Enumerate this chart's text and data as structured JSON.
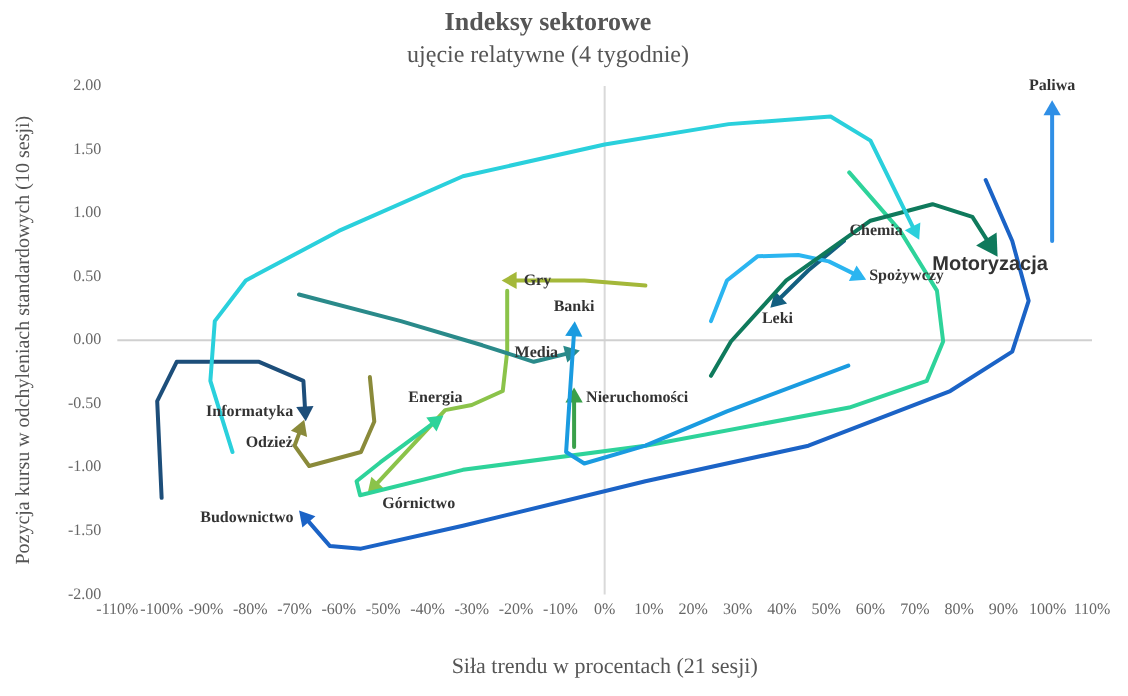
{
  "chart_data": {
    "type": "line",
    "title": "Indeksy sektorowe",
    "subtitle": "ujęcie relatywne (4 tygodnie)",
    "xlabel": "Siła trendu w procentach (21 sesji)",
    "ylabel": "Pozycja kursu w odchyleniach standardowych (10 sesji)",
    "xlim": [
      -110,
      110
    ],
    "xticks": [
      {
        "value": -110,
        "label": "-110%"
      },
      {
        "value": -100,
        "label": "-100%"
      },
      {
        "value": -90,
        "label": "-90%"
      },
      {
        "value": -80,
        "label": "-80%"
      },
      {
        "value": -70,
        "label": "-70%"
      },
      {
        "value": -60,
        "label": "-60%"
      },
      {
        "value": -50,
        "label": "-50%"
      },
      {
        "value": -40,
        "label": "-40%"
      },
      {
        "value": -30,
        "label": "-30%"
      },
      {
        "value": -20,
        "label": "-20%"
      },
      {
        "value": -10,
        "label": "-10%"
      },
      {
        "value": 0,
        "label": "0%"
      },
      {
        "value": 10,
        "label": "10%"
      },
      {
        "value": 20,
        "label": "20%"
      },
      {
        "value": 30,
        "label": "30%"
      },
      {
        "value": 40,
        "label": "40%"
      },
      {
        "value": 50,
        "label": "50%"
      },
      {
        "value": 60,
        "label": "60%"
      },
      {
        "value": 70,
        "label": "70%"
      },
      {
        "value": 80,
        "label": "80%"
      },
      {
        "value": 90,
        "label": "90%"
      },
      {
        "value": 100,
        "label": "100%"
      },
      {
        "value": 110,
        "label": "110%"
      }
    ],
    "ylim": [
      -2,
      2
    ],
    "yticks": [
      {
        "value": -2,
        "label": "-2.00"
      },
      {
        "value": -1.5,
        "label": "-1.50"
      },
      {
        "value": -1,
        "label": "-1.00"
      },
      {
        "value": -0.5,
        "label": "-0.50"
      },
      {
        "value": 0,
        "label": "0.00"
      },
      {
        "value": 0.5,
        "label": "0.50"
      },
      {
        "value": 1,
        "label": "1.00"
      },
      {
        "value": 1.5,
        "label": "1.50"
      },
      {
        "value": 2,
        "label": "2.00"
      }
    ],
    "grid": false,
    "legend": false,
    "ref_lines": [
      {
        "axis": "x",
        "value": 0,
        "color": "#d9d9d9"
      },
      {
        "axis": "y",
        "value": 0,
        "color": "#d0d0d0"
      }
    ],
    "series": [
      {
        "name": "Paliwa",
        "color": "#2f8fe6",
        "x": [
          101,
          101
        ],
        "values": [
          0.78,
          1.81
        ]
      },
      {
        "name": "Chemia",
        "color": "#2ad0dc",
        "x": [
          -84,
          -89,
          -88,
          -81,
          -60,
          -32,
          0,
          28,
          51,
          60,
          70
        ],
        "values": [
          -0.88,
          -0.32,
          0.15,
          0.47,
          0.86,
          1.29,
          1.54,
          1.7,
          1.76,
          1.57,
          0.86
        ]
      },
      {
        "name": "Motoryzacja",
        "color": "#0f7a5c",
        "x": [
          24,
          28.5,
          41,
          60,
          74,
          83,
          87
        ],
        "values": [
          -0.28,
          -0.01,
          0.47,
          0.94,
          1.07,
          0.97,
          0.75
        ]
      },
      {
        "name": "Spożywczy",
        "color": "#2bb5f0",
        "x": [
          24,
          27.6,
          34.5,
          43.7,
          50.6,
          57
        ],
        "values": [
          0.15,
          0.47,
          0.66,
          0.67,
          0.62,
          0.51
        ]
      },
      {
        "name": "Leki",
        "color": "#135f80",
        "x": [
          54,
          46,
          39
        ],
        "values": [
          0.78,
          0.55,
          0.31
        ]
      },
      {
        "name": "Banki",
        "color": "#1a9be0",
        "x": [
          55,
          27.6,
          9.2,
          -4.6,
          -8.7,
          -7.8,
          -6.9
        ],
        "values": [
          -0.2,
          -0.56,
          -0.83,
          -0.97,
          -0.88,
          -0.4,
          0.07
        ]
      },
      {
        "name": "Media",
        "color": "#2a8a8a",
        "x": [
          -69,
          -46,
          -27.6,
          -16,
          -7.8
        ],
        "values": [
          0.36,
          0.15,
          -0.04,
          -0.17,
          -0.1
        ]
      },
      {
        "name": "Nieruchomości",
        "color": "#3aa04a",
        "x": [
          -6.9,
          -6.9
        ],
        "values": [
          -0.84,
          -0.45
        ]
      },
      {
        "name": "Gry",
        "color": "#a4b83a",
        "x": [
          9.2,
          -4.6,
          -21
        ],
        "values": [
          0.43,
          0.47,
          0.47
        ]
      },
      {
        "name": "Energia",
        "color": "#2ed39a",
        "x": [
          55.2,
          66.7,
          75,
          76.4,
          72.7,
          55.2,
          9.2,
          -32,
          -55.2,
          -56,
          -50.6,
          -38.2
        ],
        "values": [
          1.32,
          0.86,
          0.39,
          -0.01,
          -0.32,
          -0.53,
          -0.83,
          -1.02,
          -1.22,
          -1.11,
          -0.96,
          -0.64
        ]
      },
      {
        "name": "Górnictwo",
        "color": "#8bc34a",
        "x": [
          -22,
          -22,
          -23,
          -30,
          -36,
          -52
        ],
        "values": [
          0.39,
          -0.09,
          -0.4,
          -0.51,
          -0.55,
          -1.15
        ]
      },
      {
        "name": "Informatyka",
        "color": "#1d4e7a",
        "x": [
          -100,
          -101,
          -96.6,
          -78,
          -68,
          -67.6
        ],
        "values": [
          -1.24,
          -0.48,
          -0.17,
          -0.17,
          -0.32,
          -0.56
        ]
      },
      {
        "name": "Odzież",
        "color": "#8a8a3a",
        "x": [
          -53,
          -52,
          -55,
          -66.7,
          -70,
          -68.6
        ],
        "values": [
          -0.29,
          -0.64,
          -0.88,
          -0.99,
          -0.83,
          -0.7
        ]
      },
      {
        "name": "Budownictwo",
        "color": "#1b63c6",
        "x": [
          86,
          92,
          95.7,
          92,
          78,
          46,
          9.2,
          -32,
          -55,
          -62,
          -67.5
        ],
        "values": [
          1.26,
          0.78,
          0.31,
          -0.09,
          -0.4,
          -0.83,
          -1.11,
          -1.46,
          -1.64,
          -1.62,
          -1.4
        ]
      }
    ]
  }
}
